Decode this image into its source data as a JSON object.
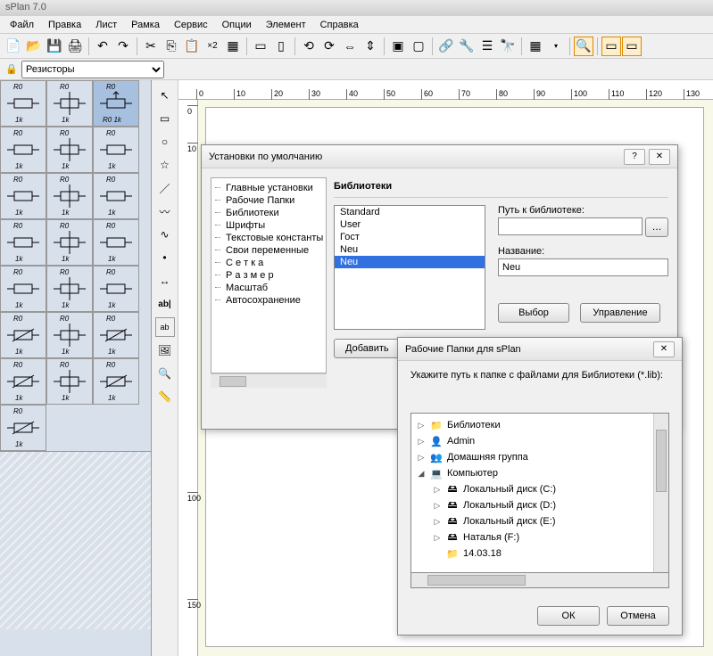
{
  "window": {
    "title": "sPlan 7.0"
  },
  "menu": {
    "items": [
      "Файл",
      "Правка",
      "Лист",
      "Рамка",
      "Сервис",
      "Опции",
      "Элемент",
      "Справка"
    ]
  },
  "sidebar": {
    "dropdown": "Резисторы"
  },
  "ruler_h": [
    "0",
    "10",
    "20",
    "30",
    "40",
    "50",
    "60",
    "70",
    "80",
    "90",
    "100",
    "110",
    "120",
    "130"
  ],
  "ruler_v": [
    "0",
    "10",
    "100",
    "150"
  ],
  "palette": {
    "label1": "R0",
    "label2": "1k",
    "label3": "R0 1k"
  },
  "dialog1": {
    "title": "Установки по умолчанию",
    "tree": [
      "Главные установки",
      "Рабочие Папки",
      "Библиотеки",
      "Шрифты",
      "Текстовые константы",
      "Свои переменные",
      "С е т к а",
      "Р а з м е р",
      "Масштаб",
      "Автосохранение"
    ],
    "group_title": "Библиотеки",
    "list": [
      "Standard",
      "User",
      "Гост",
      "Neu",
      "Neu"
    ],
    "selected_index": 4,
    "path_label": "Путь к библиотеке:",
    "path_value": "",
    "name_label": "Название:",
    "name_value": "Neu",
    "btn_add": "Добавить",
    "btn_choose": "Выбор",
    "btn_manage": "Управление"
  },
  "dialog2": {
    "title": "Рабочие Папки для sPlan",
    "instruction": "Укажите путь к папке с файлами для Библиотеки (*.lib):",
    "items": [
      {
        "label": "Библиотеки",
        "icon": "folder-lib",
        "indent": 0,
        "expander": "▷"
      },
      {
        "label": "Admin",
        "icon": "user",
        "indent": 0,
        "expander": "▷"
      },
      {
        "label": "Домашняя группа",
        "icon": "homegroup",
        "indent": 0,
        "expander": "▷"
      },
      {
        "label": "Компьютер",
        "icon": "computer",
        "indent": 0,
        "expander": "◢"
      },
      {
        "label": "Локальный диск (C:)",
        "icon": "drive",
        "indent": 1,
        "expander": "▷"
      },
      {
        "label": "Локальный диск (D:)",
        "icon": "drive",
        "indent": 1,
        "expander": "▷"
      },
      {
        "label": "Локальный диск (E:)",
        "icon": "drive",
        "indent": 1,
        "expander": "▷"
      },
      {
        "label": "Наталья (F:)",
        "icon": "drive",
        "indent": 1,
        "expander": "▷"
      },
      {
        "label": "14.03.18",
        "icon": "folder",
        "indent": 1,
        "expander": ""
      }
    ],
    "btn_ok": "ОК",
    "btn_cancel": "Отмена"
  },
  "colors": {
    "selection": "#3070e0",
    "palette_bg": "#d8e0ec",
    "canvas": "#f8f8e8"
  }
}
